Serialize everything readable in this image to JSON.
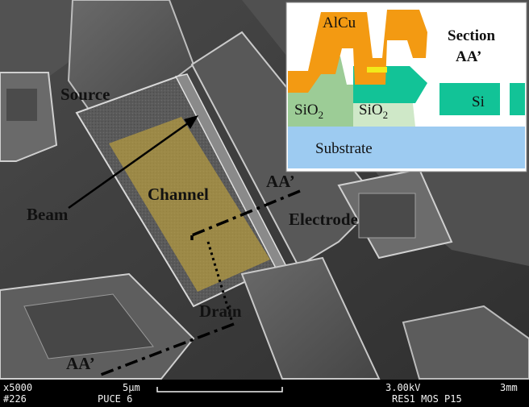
{
  "labels": {
    "source": "Source",
    "beam": "Beam",
    "channel": "Channel",
    "electrode": "Electrode",
    "drain": "Drain",
    "aa_top": "AA’",
    "aa_bottom": "AA’"
  },
  "inset": {
    "alcu": "AlCu",
    "section_line1": "Section",
    "section_line2": "AA’",
    "sio2_left": "SiO",
    "sio2_right": "SiO",
    "subscript": "2",
    "si": "Si",
    "substrate": "Substrate"
  },
  "sem_bar": {
    "magnification": "x5000",
    "scale": "5μm",
    "voltage": "3.00kV",
    "working_distance": "3mm",
    "image_no": "#226",
    "sample": "PUCE 6",
    "info": "RES1 MOS P15"
  },
  "colors": {
    "alcu": "#f39a12",
    "sio2": "#9ccc96",
    "sio2_light": "#cfe8c8",
    "si": "#12c397",
    "substrate": "#9dcbf1",
    "gate": "#f2ea1a",
    "channel_overlay": "#c8a83a"
  }
}
